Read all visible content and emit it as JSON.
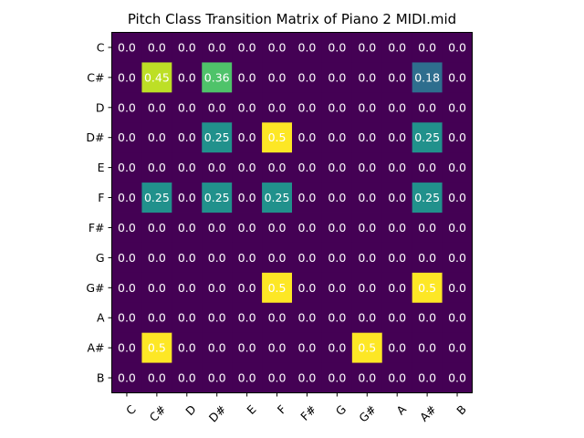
{
  "chart_data": {
    "type": "heatmap",
    "title": "Pitch Class Transition Matrix of Piano 2 MIDI.mid",
    "xlabel": "",
    "ylabel": "",
    "x_categories": [
      "C",
      "C#",
      "D",
      "D#",
      "E",
      "F",
      "F#",
      "G",
      "G#",
      "A",
      "A#",
      "B"
    ],
    "y_categories": [
      "C",
      "C#",
      "D",
      "D#",
      "E",
      "F",
      "F#",
      "G",
      "G#",
      "A",
      "A#",
      "B"
    ],
    "values": [
      [
        0.0,
        0.0,
        0.0,
        0.0,
        0.0,
        0.0,
        0.0,
        0.0,
        0.0,
        0.0,
        0.0,
        0.0
      ],
      [
        0.0,
        0.45,
        0.0,
        0.36,
        0.0,
        0.0,
        0.0,
        0.0,
        0.0,
        0.0,
        0.18,
        0.0
      ],
      [
        0.0,
        0.0,
        0.0,
        0.0,
        0.0,
        0.0,
        0.0,
        0.0,
        0.0,
        0.0,
        0.0,
        0.0
      ],
      [
        0.0,
        0.0,
        0.0,
        0.25,
        0.0,
        0.5,
        0.0,
        0.0,
        0.0,
        0.0,
        0.25,
        0.0
      ],
      [
        0.0,
        0.0,
        0.0,
        0.0,
        0.0,
        0.0,
        0.0,
        0.0,
        0.0,
        0.0,
        0.0,
        0.0
      ],
      [
        0.0,
        0.25,
        0.0,
        0.25,
        0.0,
        0.25,
        0.0,
        0.0,
        0.0,
        0.0,
        0.25,
        0.0
      ],
      [
        0.0,
        0.0,
        0.0,
        0.0,
        0.0,
        0.0,
        0.0,
        0.0,
        0.0,
        0.0,
        0.0,
        0.0
      ],
      [
        0.0,
        0.0,
        0.0,
        0.0,
        0.0,
        0.0,
        0.0,
        0.0,
        0.0,
        0.0,
        0.0,
        0.0
      ],
      [
        0.0,
        0.0,
        0.0,
        0.0,
        0.0,
        0.5,
        0.0,
        0.0,
        0.0,
        0.0,
        0.5,
        0.0
      ],
      [
        0.0,
        0.0,
        0.0,
        0.0,
        0.0,
        0.0,
        0.0,
        0.0,
        0.0,
        0.0,
        0.0,
        0.0
      ],
      [
        0.0,
        0.5,
        0.0,
        0.0,
        0.0,
        0.0,
        0.0,
        0.0,
        0.5,
        0.0,
        0.0,
        0.0
      ],
      [
        0.0,
        0.0,
        0.0,
        0.0,
        0.0,
        0.0,
        0.0,
        0.0,
        0.0,
        0.0,
        0.0,
        0.0
      ]
    ],
    "value_range": [
      0,
      0.5
    ],
    "colormap": "viridis",
    "x_tick_rotation": "45-degrees",
    "grid": false,
    "legend": "none",
    "label_color": "#ffffff"
  }
}
